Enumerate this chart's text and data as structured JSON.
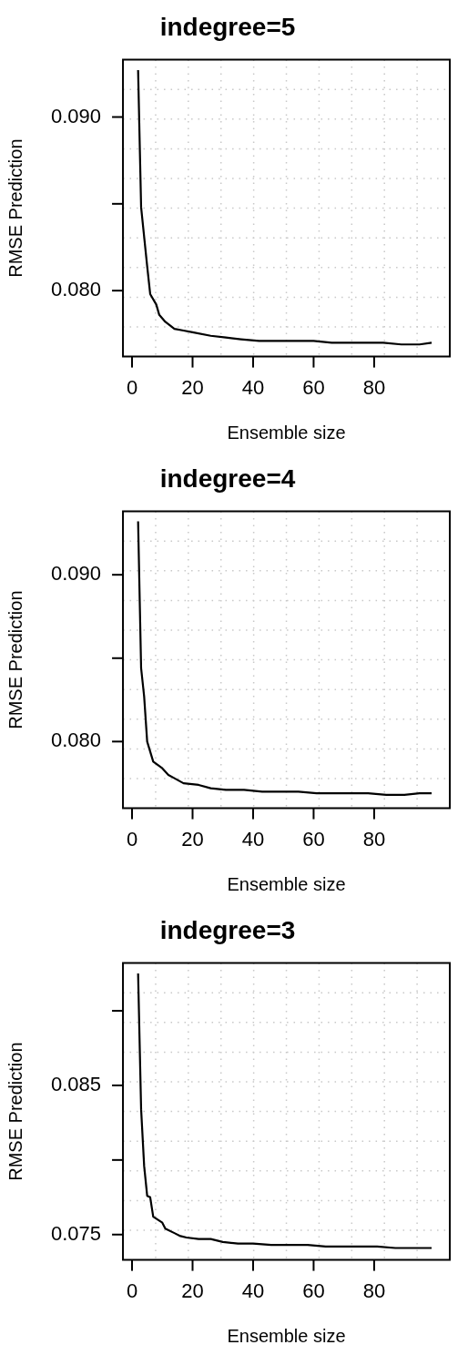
{
  "chart_data": [
    {
      "type": "line",
      "title": "indegree=5",
      "xlabel": "Ensemble size",
      "ylabel": "RMSE Prediction",
      "color": "#000000",
      "grid": true,
      "x": [
        2,
        3,
        5,
        6,
        8,
        9,
        11,
        14,
        17,
        20,
        26,
        31,
        36,
        42,
        48,
        54,
        60,
        66,
        72,
        78,
        83,
        89,
        95,
        99
      ],
      "values": [
        0.0927,
        0.0848,
        0.0814,
        0.0798,
        0.0792,
        0.0786,
        0.0782,
        0.0778,
        0.0777,
        0.0776,
        0.0774,
        0.0773,
        0.0772,
        0.0771,
        0.0771,
        0.0771,
        0.0771,
        0.077,
        0.077,
        0.077,
        0.077,
        0.0769,
        0.0769,
        0.077
      ],
      "xlim": [
        -3,
        105
      ],
      "xticks": [
        0,
        20,
        40,
        60,
        80
      ],
      "ylim": [
        0.0762,
        0.0933
      ],
      "yticks": [
        {
          "value": 0.08,
          "label": "0.080"
        },
        {
          "value": 0.085,
          "label": null
        },
        {
          "value": 0.09,
          "label": "0.090"
        }
      ]
    },
    {
      "type": "line",
      "title": "indegree=4",
      "xlabel": "Ensemble size",
      "ylabel": "RMSE Prediction",
      "color": "#000000",
      "grid": true,
      "x": [
        2,
        3,
        4,
        5,
        7,
        10,
        12,
        14,
        17,
        22,
        26,
        31,
        37,
        43,
        49,
        55,
        61,
        66,
        72,
        78,
        84,
        90,
        95,
        99
      ],
      "values": [
        0.0932,
        0.0844,
        0.0827,
        0.08,
        0.0788,
        0.0784,
        0.078,
        0.0778,
        0.0775,
        0.0774,
        0.0772,
        0.0771,
        0.0771,
        0.077,
        0.077,
        0.077,
        0.0769,
        0.0769,
        0.0769,
        0.0769,
        0.0768,
        0.0768,
        0.0769,
        0.0769
      ],
      "xlim": [
        -3,
        105
      ],
      "xticks": [
        0,
        20,
        40,
        60,
        80
      ],
      "ylim": [
        0.076,
        0.0938
      ],
      "yticks": [
        {
          "value": 0.08,
          "label": "0.080"
        },
        {
          "value": 0.085,
          "label": null
        },
        {
          "value": 0.09,
          "label": "0.090"
        }
      ]
    },
    {
      "type": "line",
      "title": "indegree=3",
      "xlabel": "Ensemble size",
      "ylabel": "RMSE Prediction",
      "color": "#000000",
      "grid": true,
      "x": [
        2,
        3,
        4,
        5,
        6,
        7,
        10,
        11,
        14,
        16,
        18,
        22,
        26,
        30,
        35,
        40,
        46,
        52,
        58,
        64,
        70,
        76,
        81,
        87,
        93,
        99
      ],
      "values": [
        0.0925,
        0.0834,
        0.0796,
        0.0776,
        0.0775,
        0.0762,
        0.0758,
        0.0754,
        0.0751,
        0.0749,
        0.0748,
        0.0747,
        0.0747,
        0.0745,
        0.0744,
        0.0744,
        0.0743,
        0.0743,
        0.0743,
        0.0742,
        0.0742,
        0.0742,
        0.0742,
        0.0741,
        0.0741,
        0.0741
      ],
      "xlim": [
        -3,
        105
      ],
      "xticks": [
        0,
        20,
        40,
        60,
        80
      ],
      "ylim": [
        0.0733,
        0.0932
      ],
      "yticks": [
        {
          "value": 0.075,
          "label": "0.075"
        },
        {
          "value": 0.08,
          "label": null
        },
        {
          "value": 0.085,
          "label": "0.085"
        },
        {
          "value": 0.09,
          "label": null
        }
      ]
    }
  ]
}
